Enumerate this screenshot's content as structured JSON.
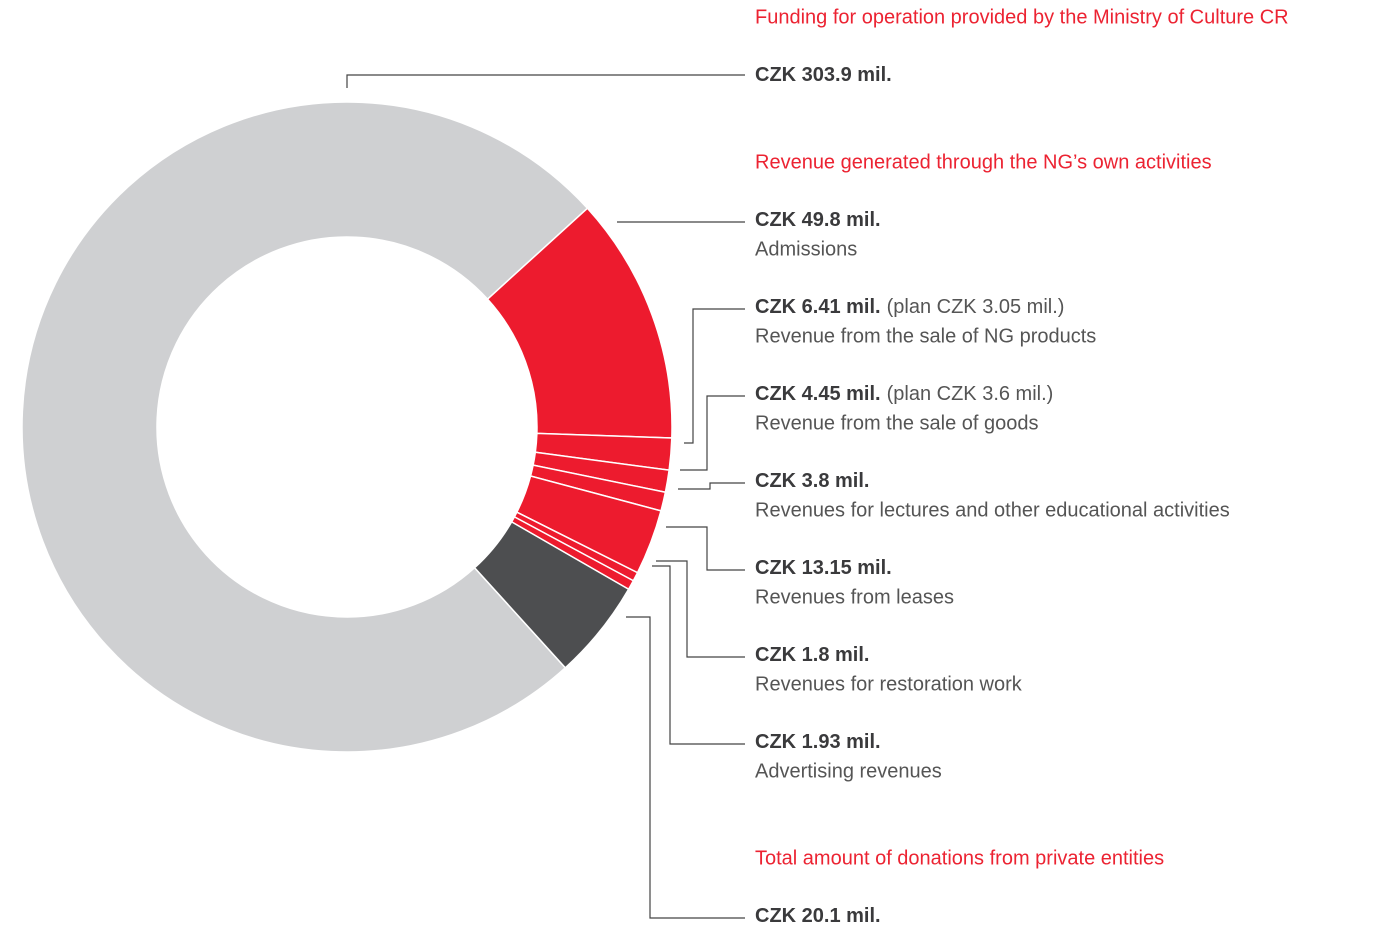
{
  "chart_data": {
    "type": "donut",
    "groups": [
      {
        "heading": "Funding for operation provided by the Ministry of Culture CR",
        "color": "#cfd0d2",
        "categories": [
          null
        ],
        "values": [
          303.9
        ],
        "value_labels": [
          "CZK 303.9 mil."
        ],
        "notes": [
          null
        ]
      },
      {
        "heading": "Revenue generated through the NG’s own activities",
        "color": "#ed1b2e",
        "categories": [
          "Admissions",
          "Revenue from the sale of NG products",
          "Revenue from the sale of goods",
          "Revenues for lectures and other educational activities",
          "Revenues from leases",
          "Revenues for restoration work",
          "Advertising revenues"
        ],
        "values": [
          49.8,
          6.41,
          4.45,
          3.8,
          13.15,
          1.8,
          1.93
        ],
        "value_labels": [
          "CZK 49.8 mil.",
          "CZK 6.41 mil.",
          "CZK 4.45 mil.",
          "CZK 3.8 mil.",
          "CZK 13.15 mil.",
          "CZK 1.8 mil.",
          "CZK 1.93 mil."
        ],
        "notes": [
          null,
          "(plan CZK 3.05 mil.)",
          "(plan CZK 3.6 mil.)",
          null,
          null,
          null,
          null
        ]
      },
      {
        "heading": "Total amount of donations from private entities",
        "color": "#4d4e50",
        "categories": [
          null
        ],
        "values": [
          20.1
        ],
        "value_labels": [
          "CZK 20.1 mil."
        ],
        "notes": [
          null
        ]
      }
    ]
  }
}
